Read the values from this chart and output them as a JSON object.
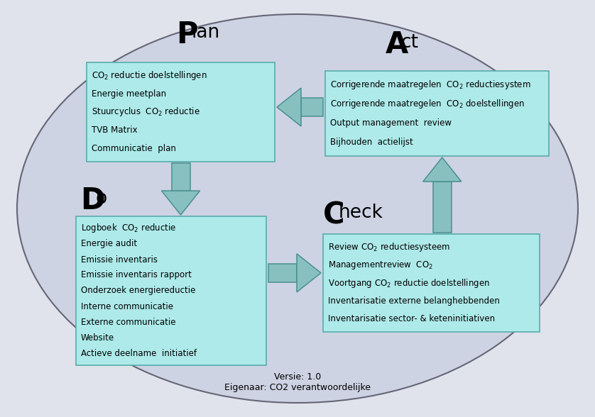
{
  "bg_outer": "#e0e3ec",
  "ellipse_face": "#cdd3e3",
  "ellipse_edge": "#666677",
  "box_face": "#aeeaea",
  "box_edge": "#5aacac",
  "arrow_face": "#88c0c0",
  "arrow_edge": "#4a9090",
  "plan_lines": [
    "CO₂ reductie doelstellingen",
    "Energie meetplan",
    "Stuurcyclus  CO₂ reductie",
    "TVB Matrix",
    "Communicatie  plan"
  ],
  "act_lines": [
    "Corrigerende maatregelen  CO₂ reductiesystem",
    "Corrigerende maatregelen  CO₂ doelstellingen",
    "Output management  review",
    "Bijhouden  actielijst"
  ],
  "do_lines": [
    "Logboek  CO₂ reductie",
    "Energie audit",
    "Emissie inventaris",
    "Emissie inventaris rapport",
    "Onderzoek energiereductie",
    "Interne communicatie",
    "Externe communicatie",
    "Website",
    "Actieve deelname  initiatief"
  ],
  "check_lines": [
    "Review CO₂ reductiesysteem",
    "Managementreview  CO₂",
    "Voortgang CO₂ reductie doelstellingen",
    "Inventarisatie externe belanghebbenden",
    "Inventarisatie sector- & keteninitiativen"
  ],
  "footer1": "Versie: 1.0",
  "footer2": "Eigenaar: CO2 verantwoordelijke"
}
